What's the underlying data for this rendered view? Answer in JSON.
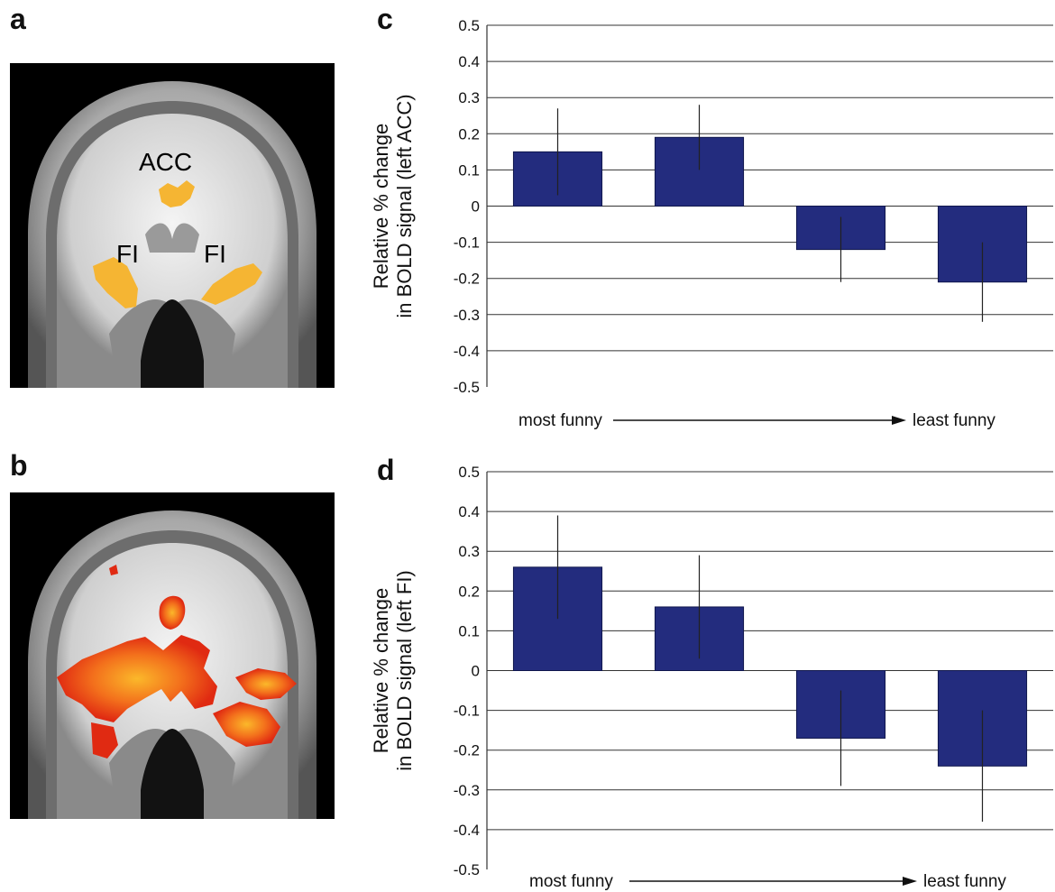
{
  "panels": {
    "a": "a",
    "b": "b",
    "c": "c",
    "d": "d"
  },
  "brain_a": {
    "labels": {
      "acc": "ACC",
      "fi_left": "FI",
      "fi_right": "FI"
    },
    "activation_color": "#f5b533"
  },
  "brain_b": {
    "activation_colors": [
      "#e02a12",
      "#f3701c",
      "#fbb82a"
    ]
  },
  "colors": {
    "bar": "#232c7e",
    "bar_stroke": "#10174d"
  },
  "chart_data": [
    {
      "type": "bar",
      "panel": "c",
      "categories": [
        "",
        "",
        "",
        ""
      ],
      "values": [
        0.15,
        0.19,
        -0.12,
        -0.21
      ],
      "error": [
        0.12,
        0.09,
        0.09,
        0.11
      ],
      "ylim": [
        -0.5,
        0.5
      ],
      "yticks": [
        0.5,
        0.4,
        0.3,
        0.2,
        0.1,
        0,
        -0.1,
        -0.2,
        -0.3,
        -0.4,
        -0.5
      ],
      "ytick_labels": [
        "0.5",
        "0.4",
        "0.3",
        "0.2",
        "0.1",
        "0",
        "-0.1",
        "-0.2",
        "-0.3",
        "-0.4",
        "-0.5"
      ],
      "ylabel_line1": "Relative % change",
      "ylabel_line2": "in BOLD signal (left ACC)",
      "trend_start": "most funny",
      "trend_end": "least funny",
      "grid": true
    },
    {
      "type": "bar",
      "panel": "d",
      "categories": [
        "",
        "",
        "",
        ""
      ],
      "values": [
        0.26,
        0.16,
        -0.17,
        -0.24
      ],
      "error": [
        0.13,
        0.13,
        0.12,
        0.14
      ],
      "ylim": [
        -0.5,
        0.5
      ],
      "yticks": [
        0.5,
        0.4,
        0.3,
        0.2,
        0.1,
        0,
        -0.1,
        -0.2,
        -0.3,
        -0.4,
        -0.5
      ],
      "ytick_labels": [
        "0.5",
        "0.4",
        "0.3",
        "0.2",
        "0.1",
        "0",
        "-0.1",
        "-0.2",
        "-0.3",
        "-0.4",
        "-0.5"
      ],
      "ylabel_line1": "Relative % change",
      "ylabel_line2": "in BOLD signal (left FI)",
      "trend_start": "most funny",
      "trend_end": "least funny",
      "grid": true
    }
  ]
}
